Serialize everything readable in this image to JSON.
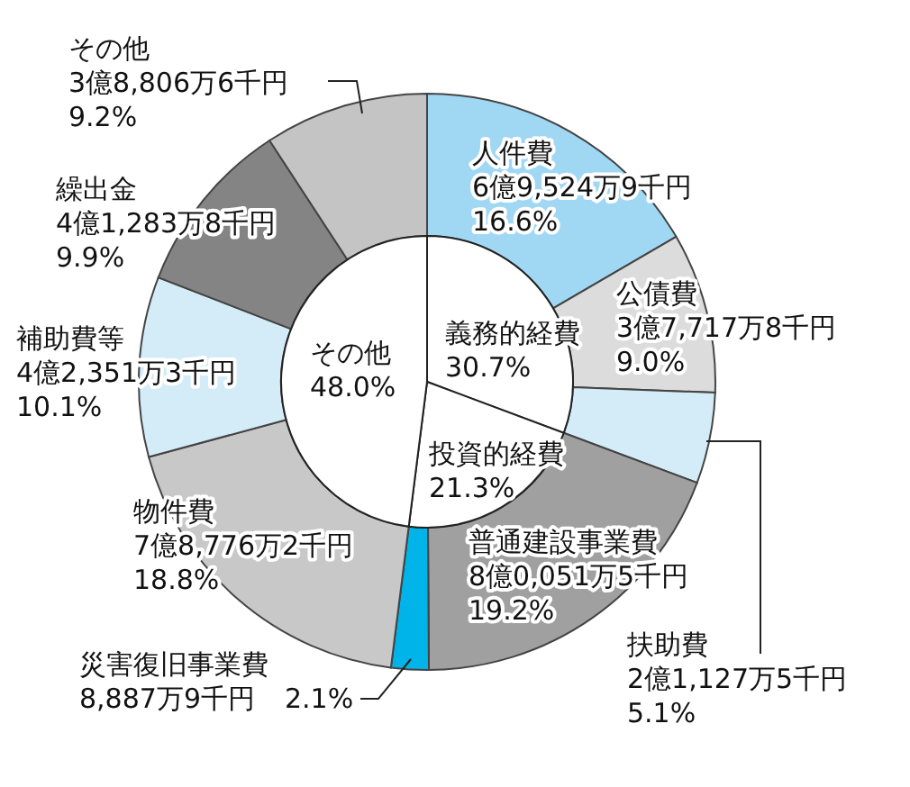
{
  "chart_data": [
    {
      "type": "donut",
      "categories": [
        "人件費",
        "公債費",
        "扶助費",
        "普通建設事業費",
        "災害復旧事業費",
        "物件費",
        "補助費等",
        "繰出金",
        "その他"
      ],
      "values": [
        16.6,
        9.0,
        5.1,
        19.2,
        2.1,
        18.8,
        10.1,
        9.9,
        9.2
      ],
      "colors": [
        "#a0d8f4",
        "#dcdcdc",
        "#d4ecf8",
        "#a0a0a0",
        "#00b4ea",
        "#c8c8c8",
        "#d4ecf8",
        "#848484",
        "#c4c4c4"
      ],
      "value_labels": [
        "6億9,524万9千円\n16.6%",
        "3億7,717万8千円\n9.0%",
        "2億1,127万5千円\n5.1%",
        "8億0,051万5千円\n19.2%",
        "8,887万9千円\n2.1%",
        "7億8,776万2千円\n18.8%",
        "4億2,351万3千円\n10.1%",
        "4億1,283万8千円\n9.9%",
        "3億8,806万6千円\n9.2%"
      ]
    },
    {
      "type": "pie",
      "categories": [
        "義務的経費",
        "投資的経費",
        "その他"
      ],
      "values": [
        30.7,
        21.3,
        48.0
      ],
      "colors": [
        "#ffffff",
        "#ffffff",
        "#ffffff"
      ],
      "value_labels": [
        "30.7%",
        "21.3%",
        "48.0%"
      ]
    }
  ]
}
